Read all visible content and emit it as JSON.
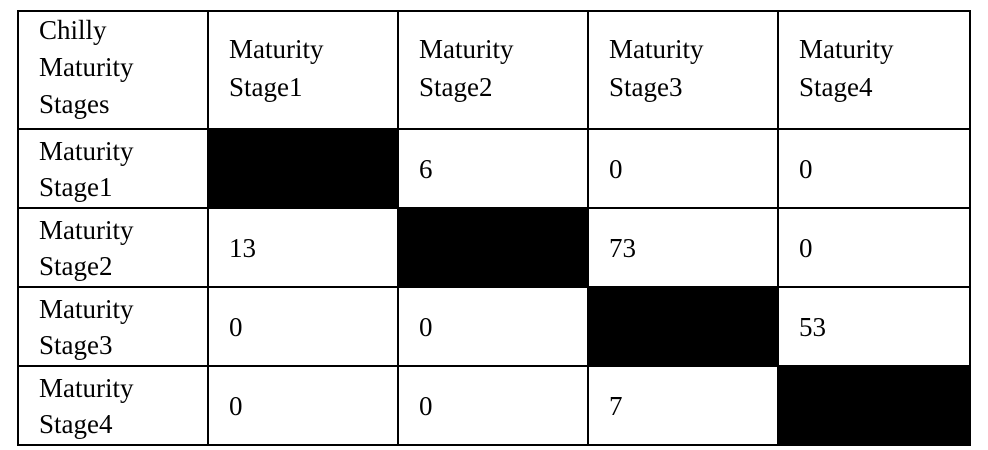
{
  "table": {
    "corner_lines": [
      "Chilly",
      "Maturity",
      "Stages"
    ],
    "columns": [
      {
        "line1": "Maturity",
        "line2": "Stage1"
      },
      {
        "line1": "Maturity",
        "line2": "Stage2"
      },
      {
        "line1": "Maturity",
        "line2": "Stage3"
      },
      {
        "line1": "Maturity",
        "line2": "Stage4"
      }
    ],
    "rows": [
      {
        "line1": "Maturity",
        "line2": "Stage1",
        "cells": [
          "",
          "6",
          "0",
          "0"
        ]
      },
      {
        "line1": "Maturity",
        "line2": "Stage2",
        "cells": [
          "13",
          "",
          "73",
          "0"
        ]
      },
      {
        "line1": "Maturity",
        "line2": "Stage3",
        "cells": [
          "0",
          "0",
          "",
          "53"
        ]
      },
      {
        "line1": "Maturity",
        "line2": "Stage4",
        "cells": [
          "0",
          "0",
          "7",
          ""
        ]
      }
    ],
    "diagonal_fill": "#000000"
  }
}
